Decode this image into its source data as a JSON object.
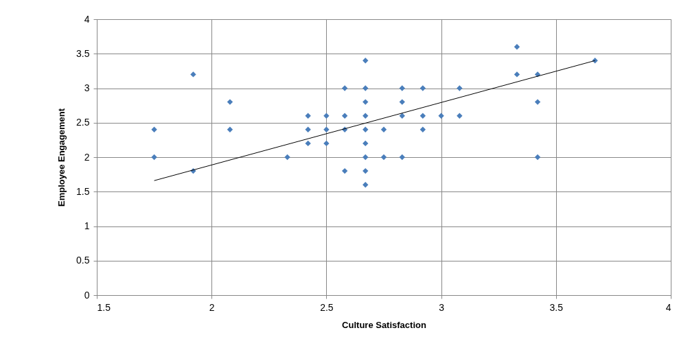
{
  "chart_data": {
    "type": "scatter",
    "xlabel": "Culture Satisfaction",
    "ylabel": "Employee Engagement",
    "xlim": [
      1.5,
      4
    ],
    "ylim": [
      0,
      4
    ],
    "xticks": [
      1.5,
      2,
      2.5,
      3,
      3.5,
      4
    ],
    "yticks": [
      0,
      0.5,
      1,
      1.5,
      2,
      2.5,
      3,
      3.5,
      4
    ],
    "grid": true,
    "marker": "diamond",
    "series": [
      {
        "color": "#4a7ebb",
        "x": [
          1.75,
          1.75,
          1.92,
          1.92,
          2.08,
          2.08,
          2.33,
          2.42,
          2.42,
          2.42,
          2.5,
          2.5,
          2.5,
          2.58,
          2.58,
          2.58,
          2.58,
          2.67,
          2.67,
          2.67,
          2.67,
          2.67,
          2.67,
          2.67,
          2.67,
          2.67,
          2.75,
          2.75,
          2.83,
          2.83,
          2.83,
          2.83,
          2.92,
          2.92,
          2.92,
          3.0,
          3.08,
          3.08,
          3.33,
          3.33,
          3.42,
          3.42,
          3.42,
          3.67
        ],
        "values": [
          2.4,
          2.0,
          3.2,
          1.8,
          2.8,
          2.4,
          2.0,
          2.6,
          2.4,
          2.2,
          2.6,
          2.4,
          2.2,
          3.0,
          2.6,
          2.4,
          1.8,
          3.4,
          3.0,
          2.8,
          2.6,
          2.4,
          2.2,
          2.0,
          1.8,
          1.6,
          2.4,
          2.0,
          3.0,
          2.8,
          2.6,
          2.0,
          3.0,
          2.6,
          2.4,
          2.6,
          3.0,
          2.6,
          3.6,
          3.2,
          3.2,
          2.8,
          2.0,
          3.4
        ]
      },
      {
        "type": "line",
        "color": "#000000",
        "marker": "none",
        "x": [
          1.75,
          3.67
        ],
        "values": [
          1.66,
          3.4
        ]
      }
    ]
  }
}
